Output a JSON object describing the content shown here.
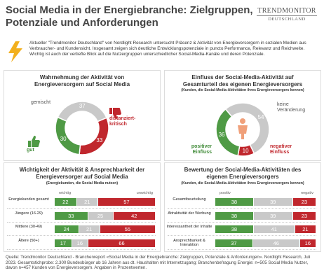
{
  "header": {
    "title": "Social Media in der Energiebranche: Zielgruppen, Potenziale und Anforderungen",
    "logo": [
      "TRENDMONITOR",
      "DEUTSCHLAND"
    ],
    "intro": "Aktueller \"Trendmonitor Deutschland\" von Nordlight Research untersucht Präsenz & Aktivität von Energieversorgern in sozialen Medien aus Verbraucher- und Kundensicht. Insgesamt zeigen sich deutliche Entwicklungspotenziale in puncto Performance, Relevanz und Reichweite. Wichtig ist auch der vertiefte Blick auf die Nutzergruppen unterschiedlicher Social-Media-Kanäle und deren Potenziale."
  },
  "chart_data": [
    {
      "type": "pie",
      "donut": true,
      "title": "Wahrnehmung der Aktivität von Energieversorgern auf Social Media",
      "categories": [
        "gemischt",
        "distanziert-kritisch",
        "gut"
      ],
      "values": [
        37,
        33,
        30
      ],
      "colors": [
        "#c9c9c9",
        "#c0272d",
        "#4f9a45"
      ]
    },
    {
      "type": "pie",
      "donut": true,
      "title": "Einfluss der Social-Media-Aktivität auf Gesamturteil des eigenen Energieversorgers",
      "subtitle": "(Kunden, die Social-Media-Aktivitäten ihres Energieversorgers kennen)",
      "categories": [
        "keine Veränderung",
        "negativer Einfluss",
        "positiver Einfluss"
      ],
      "values": [
        54,
        10,
        36
      ],
      "colors": [
        "#c9c9c9",
        "#c0272d",
        "#4f9a45"
      ]
    },
    {
      "type": "bar",
      "orientation": "horizontal",
      "stacked": true,
      "title": "Wichtigkeit der Aktivität & Ansprechbarkeit der Energieversorger auf Social Media",
      "subtitle": "(Energiekunden, die Social Media nutzen)",
      "categories": [
        "Energiekunden gesamt",
        "Jüngere (16-29)",
        "Mittlere (30-49)",
        "Ältere (50+)"
      ],
      "series": [
        {
          "name": "wichtig",
          "color": "#4f9a45",
          "values": [
            22,
            33,
            24,
            17
          ]
        },
        {
          "color": "#c9c9c9",
          "values": [
            21,
            25,
            21,
            16
          ]
        },
        {
          "name": "unwichtig",
          "color": "#c0272d",
          "values": [
            57,
            42,
            55,
            66
          ]
        }
      ]
    },
    {
      "type": "bar",
      "orientation": "horizontal",
      "stacked": true,
      "title": "Bewertung der Social-Media-Aktivitäten des eigenen Energieversorgers",
      "subtitle": "(Kunden, die Social-Media-Aktivitäten ihres Energieversorgers kennen)",
      "categories": [
        "Gesamtbeurteilung",
        "Attraktivität der Werbung",
        "Interessantheit der Inhalte",
        "Ansprechbarkeit & Interaktion"
      ],
      "series": [
        {
          "name": "positiv",
          "color": "#4f9a45",
          "values": [
            38,
            38,
            38,
            37
          ]
        },
        {
          "color": "#c9c9c9",
          "values": [
            39,
            39,
            41,
            46
          ]
        },
        {
          "name": "negativ",
          "color": "#c0272d",
          "values": [
            23,
            23,
            21,
            16
          ]
        }
      ]
    }
  ],
  "footer": "Quelle: Trendmonitor Deutschland - Branchenreport «Social Media in der Energiebranche: Zielgruppen, Potenziale & Anforderungen». Nordlight Research, Juli 2023. Gesamtstichprobe: 2.300 Bundesbürger ab 16 Jahren aus dt. Haushalten mit Internetzugang; Branchenbefragung Energie: n=505 Social Media Nutzer, davon n=457 Kunden von Energieversorgern. Angaben in Prozentwerten."
}
